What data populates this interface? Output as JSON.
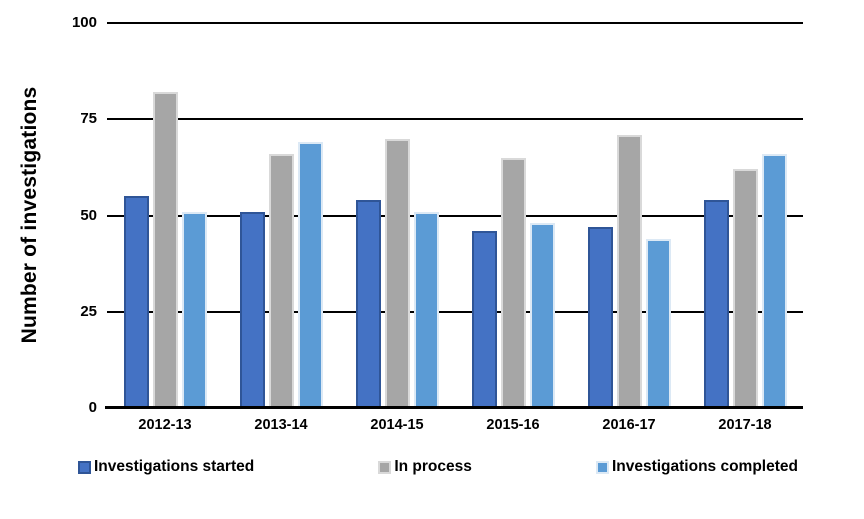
{
  "chart_data": {
    "type": "bar",
    "title": "",
    "xlabel": "",
    "ylabel": "Number of investigations",
    "ylim": [
      0,
      100
    ],
    "yticks": [
      0,
      25,
      50,
      75,
      100
    ],
    "grid": "horizontal-black",
    "legend_position": "bottom",
    "background": "#ffffff",
    "categories": [
      "2012-13",
      "2013-14",
      "2014-15",
      "2015-16",
      "2016-17",
      "2017-18"
    ],
    "series": [
      {
        "name": "Investigations started",
        "color": "#4472C4",
        "border_color": "#2F5597",
        "values": [
          55,
          51,
          54,
          46,
          47,
          54
        ]
      },
      {
        "name": "In process",
        "color": "#A6A6A6",
        "border_color": "#D9D9D9",
        "values": [
          82,
          66,
          70,
          65,
          71,
          62
        ]
      },
      {
        "name": "Investigations completed",
        "color": "#5B9BD5",
        "border_color": "#DCE9F5",
        "values": [
          51,
          69,
          51,
          48,
          44,
          66
        ]
      }
    ]
  }
}
